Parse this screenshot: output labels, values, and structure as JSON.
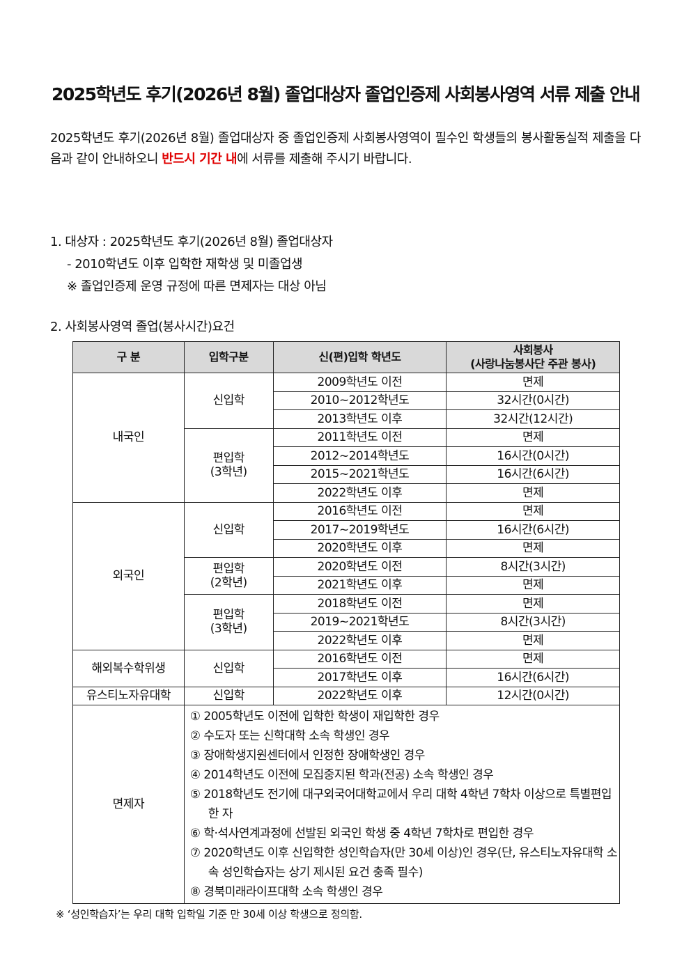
{
  "title": "2025학년도 후기(2026년 8월) 졸업대상자 졸업인증제 사회봉사영역 서류 제출 안내",
  "intro": {
    "before": "2025학년도 후기(2026년 8월) 졸업대상자 중 졸업인증제 사회봉사영역이 필수인 학생들의 봉사활동실적 제출을 다음과 같이 안내하오니 ",
    "highlight": "반드시 기간 내",
    "after": "에 서류를 제출해 주시기 바랍니다.",
    "highlight_color": "#e00000"
  },
  "section1": {
    "heading": "1.  대상자 : 2025학년도 후기(2026년 8월) 졸업대상자",
    "sub1": "- 2010학년도 이후 입학한 재학생 및 미졸업생",
    "sub2": "※ 졸업인증제 운영 규정에 따른 면제자는 대상 아님"
  },
  "section2": {
    "heading": "2.  사회봉사영역 졸업(봉사시간)요건"
  },
  "table": {
    "headers": [
      "구  분",
      "입학구분",
      "신(편)입학 학년도",
      "사회봉사\n(사랑나눔봉사단 주관 봉사)"
    ],
    "groups": [
      {
        "label": "내국인",
        "subgroups": [
          {
            "label": "신입학",
            "rows": [
              [
                "2009학년도 이전",
                "면제"
              ],
              [
                "2010~2012학년도",
                "32시간(0시간)"
              ],
              [
                "2013학년도 이후",
                "32시간(12시간)"
              ]
            ]
          },
          {
            "label": "편입학\n(3학년)",
            "rows": [
              [
                "2011학년도 이전",
                "면제"
              ],
              [
                "2012~2014학년도",
                "16시간(0시간)"
              ],
              [
                "2015~2021학년도",
                "16시간(6시간)"
              ],
              [
                "2022학년도 이후",
                "면제"
              ]
            ]
          }
        ]
      },
      {
        "label": "외국인",
        "subgroups": [
          {
            "label": "신입학",
            "rows": [
              [
                "2016학년도 이전",
                "면제"
              ],
              [
                "2017~2019학년도",
                "16시간(6시간)"
              ],
              [
                "2020학년도 이후",
                "면제"
              ]
            ]
          },
          {
            "label": "편입학\n(2학년)",
            "rows": [
              [
                "2020학년도 이전",
                "8시간(3시간)"
              ],
              [
                "2021학년도 이후",
                "면제"
              ]
            ]
          },
          {
            "label": "편입학\n(3학년)",
            "rows": [
              [
                "2018학년도 이전",
                "면제"
              ],
              [
                "2019~2021학년도",
                "8시간(3시간)"
              ],
              [
                "2022학년도 이후",
                "면제"
              ]
            ]
          }
        ]
      },
      {
        "label": "해외복수학위생",
        "subgroups": [
          {
            "label": "신입학",
            "rows": [
              [
                "2016학년도 이전",
                "면제"
              ],
              [
                "2017학년도 이후",
                "16시간(6시간)"
              ]
            ]
          }
        ]
      },
      {
        "label": "유스티노자유대학",
        "subgroups": [
          {
            "label": "신입학",
            "rows": [
              [
                "2022학년도 이후",
                "12시간(0시간)"
              ]
            ]
          }
        ]
      }
    ],
    "exempt": {
      "label": "면제자",
      "items": [
        "① 2005학년도 이전에 입학한 학생이 재입학한 경우",
        "② 수도자 또는 신학대학 소속 학생인 경우",
        "③ 장애학생지원센터에서 인정한 장애학생인 경우",
        "④ 2014학년도 이전에 모집중지된 학과(전공) 소속 학생인 경우",
        "⑤ 2018학년도 전기에 대구외국어대학교에서 우리 대학 4학년 7학차 이상으로 특별편입한 자",
        "⑥ 학·석사연계과정에 선발된 외국인 학생 중 4학년 7학차로 편입한 경우",
        "⑦ 2020학년도 이후 신입학한 성인학습자(만 30세 이상)인 경우(단, 유스티노자유대학 소속 성인학습자는 상기 제시된 요건 충족 필수)",
        "⑧ 경북미래라이프대학 소속 학생인 경우"
      ]
    }
  },
  "footnote": "※ ‘성인학습자’는 우리 대학 입학일 기준 만 30세 이상 학생으로 정의함."
}
